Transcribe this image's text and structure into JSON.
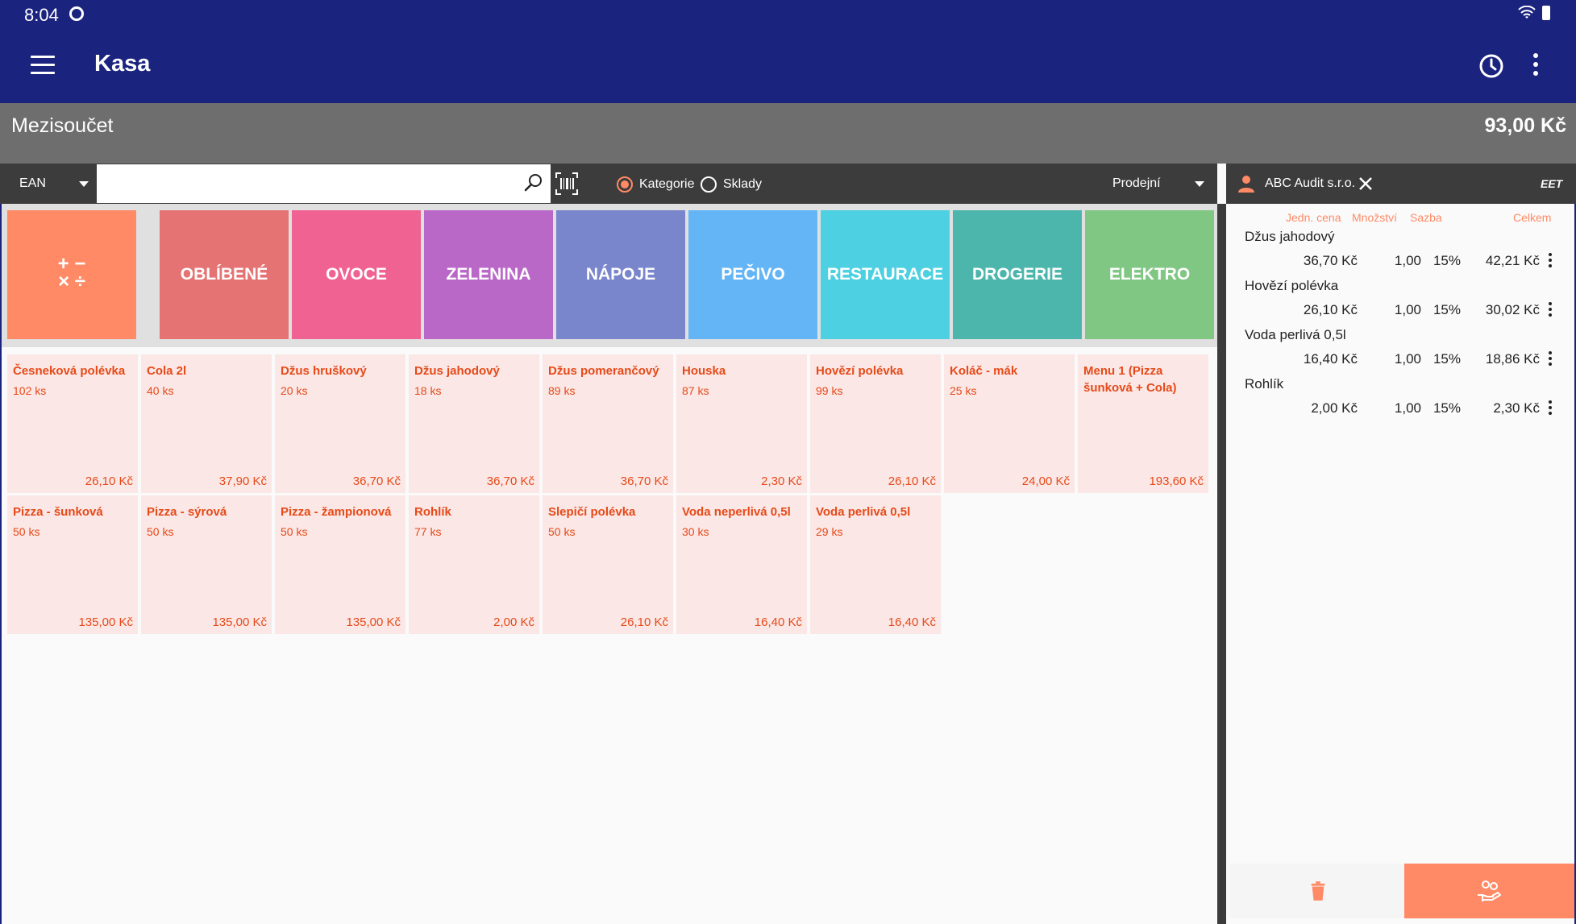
{
  "status_bar": {
    "time": "8:04"
  },
  "app_bar": {
    "title": "Kasa"
  },
  "subtotal": {
    "label": "Mezisoučet",
    "value": "93,00 Kč"
  },
  "toolbar": {
    "code_type": "EAN",
    "search_value": "",
    "radio_category": "Kategorie",
    "radio_stock": "Sklady",
    "radio_selected": "Kategorie",
    "price_type": "Prodejní"
  },
  "customer": {
    "name": "ABC Audit s.r.o.",
    "eet_label": "EET"
  },
  "categories": [
    {
      "label": "OBLÍBENÉ",
      "color": "#e57373"
    },
    {
      "label": "OVOCE",
      "color": "#f06292"
    },
    {
      "label": "ZELENINA",
      "color": "#ba68c8"
    },
    {
      "label": "NÁPOJE",
      "color": "#7986cb"
    },
    {
      "label": "PEČIVO",
      "color": "#64b5f6"
    },
    {
      "label": "RESTAURACE",
      "color": "#4dd0e1"
    },
    {
      "label": "DROGERIE",
      "color": "#4db6ac"
    },
    {
      "label": "ELEKTRO",
      "color": "#81c784"
    }
  ],
  "products": [
    {
      "name": "Česneková polévka",
      "stock": "102 ks",
      "price": "26,10 Kč"
    },
    {
      "name": "Cola 2l",
      "stock": "40 ks",
      "price": "37,90 Kč"
    },
    {
      "name": "Džus hruškový",
      "stock": "20 ks",
      "price": "36,70 Kč"
    },
    {
      "name": "Džus jahodový",
      "stock": "18 ks",
      "price": "36,70 Kč"
    },
    {
      "name": "Džus pomerančový",
      "stock": "89 ks",
      "price": "36,70 Kč"
    },
    {
      "name": "Houska",
      "stock": "87 ks",
      "price": "2,30 Kč"
    },
    {
      "name": "Hovězí polévka",
      "stock": "99 ks",
      "price": "26,10 Kč"
    },
    {
      "name": "Koláč - mák",
      "stock": "25 ks",
      "price": "24,00 Kč"
    },
    {
      "name": "Menu 1 (Pizza šunková + Cola)",
      "stock": "",
      "price": "193,60 Kč"
    },
    {
      "name": "Pizza - šunková",
      "stock": "50 ks",
      "price": "135,00 Kč"
    },
    {
      "name": "Pizza - sýrová",
      "stock": "50 ks",
      "price": "135,00 Kč"
    },
    {
      "name": "Pizza - žampionová",
      "stock": "50 ks",
      "price": "135,00 Kč"
    },
    {
      "name": "Rohlík",
      "stock": "77 ks",
      "price": "2,00 Kč"
    },
    {
      "name": "Slepičí polévka",
      "stock": "50 ks",
      "price": "26,10 Kč"
    },
    {
      "name": "Voda neperlivá 0,5l",
      "stock": "30 ks",
      "price": "16,40 Kč"
    },
    {
      "name": "Voda perlivá 0,5l",
      "stock": "29 ks",
      "price": "16,40 Kč"
    }
  ],
  "receipt": {
    "headers": {
      "unit_price": "Jedn. cena",
      "quantity": "Množství",
      "rate": "Sazba",
      "total": "Celkem"
    },
    "lines": [
      {
        "name": "Džus jahodový",
        "unit_price": "36,70 Kč",
        "quantity": "1,00",
        "rate": "15%",
        "total": "42,21 Kč"
      },
      {
        "name": "Hovězí polévka",
        "unit_price": "26,10 Kč",
        "quantity": "1,00",
        "rate": "15%",
        "total": "30,02 Kč"
      },
      {
        "name": "Voda perlivá 0,5l",
        "unit_price": "16,40 Kč",
        "quantity": "1,00",
        "rate": "15%",
        "total": "18,86 Kč"
      },
      {
        "name": "Rohlík",
        "unit_price": "2,00 Kč",
        "quantity": "1,00",
        "rate": "15%",
        "total": "2,30 Kč"
      }
    ]
  },
  "icons": {
    "menu": "menu-icon",
    "history": "clock-icon",
    "more": "more-vert-icon",
    "search": "search-icon",
    "barcode": "barcode-scan-icon",
    "person": "person-icon",
    "close": "close-icon",
    "eet": "eet-icon",
    "delete": "trash-icon",
    "pay": "hand-coins-icon",
    "calculator": "calculator-icon"
  },
  "colors": {
    "primary": "#1a237e",
    "accent": "#ff8a65",
    "product_bg": "#fbe7e5",
    "product_text": "#e64a19"
  }
}
